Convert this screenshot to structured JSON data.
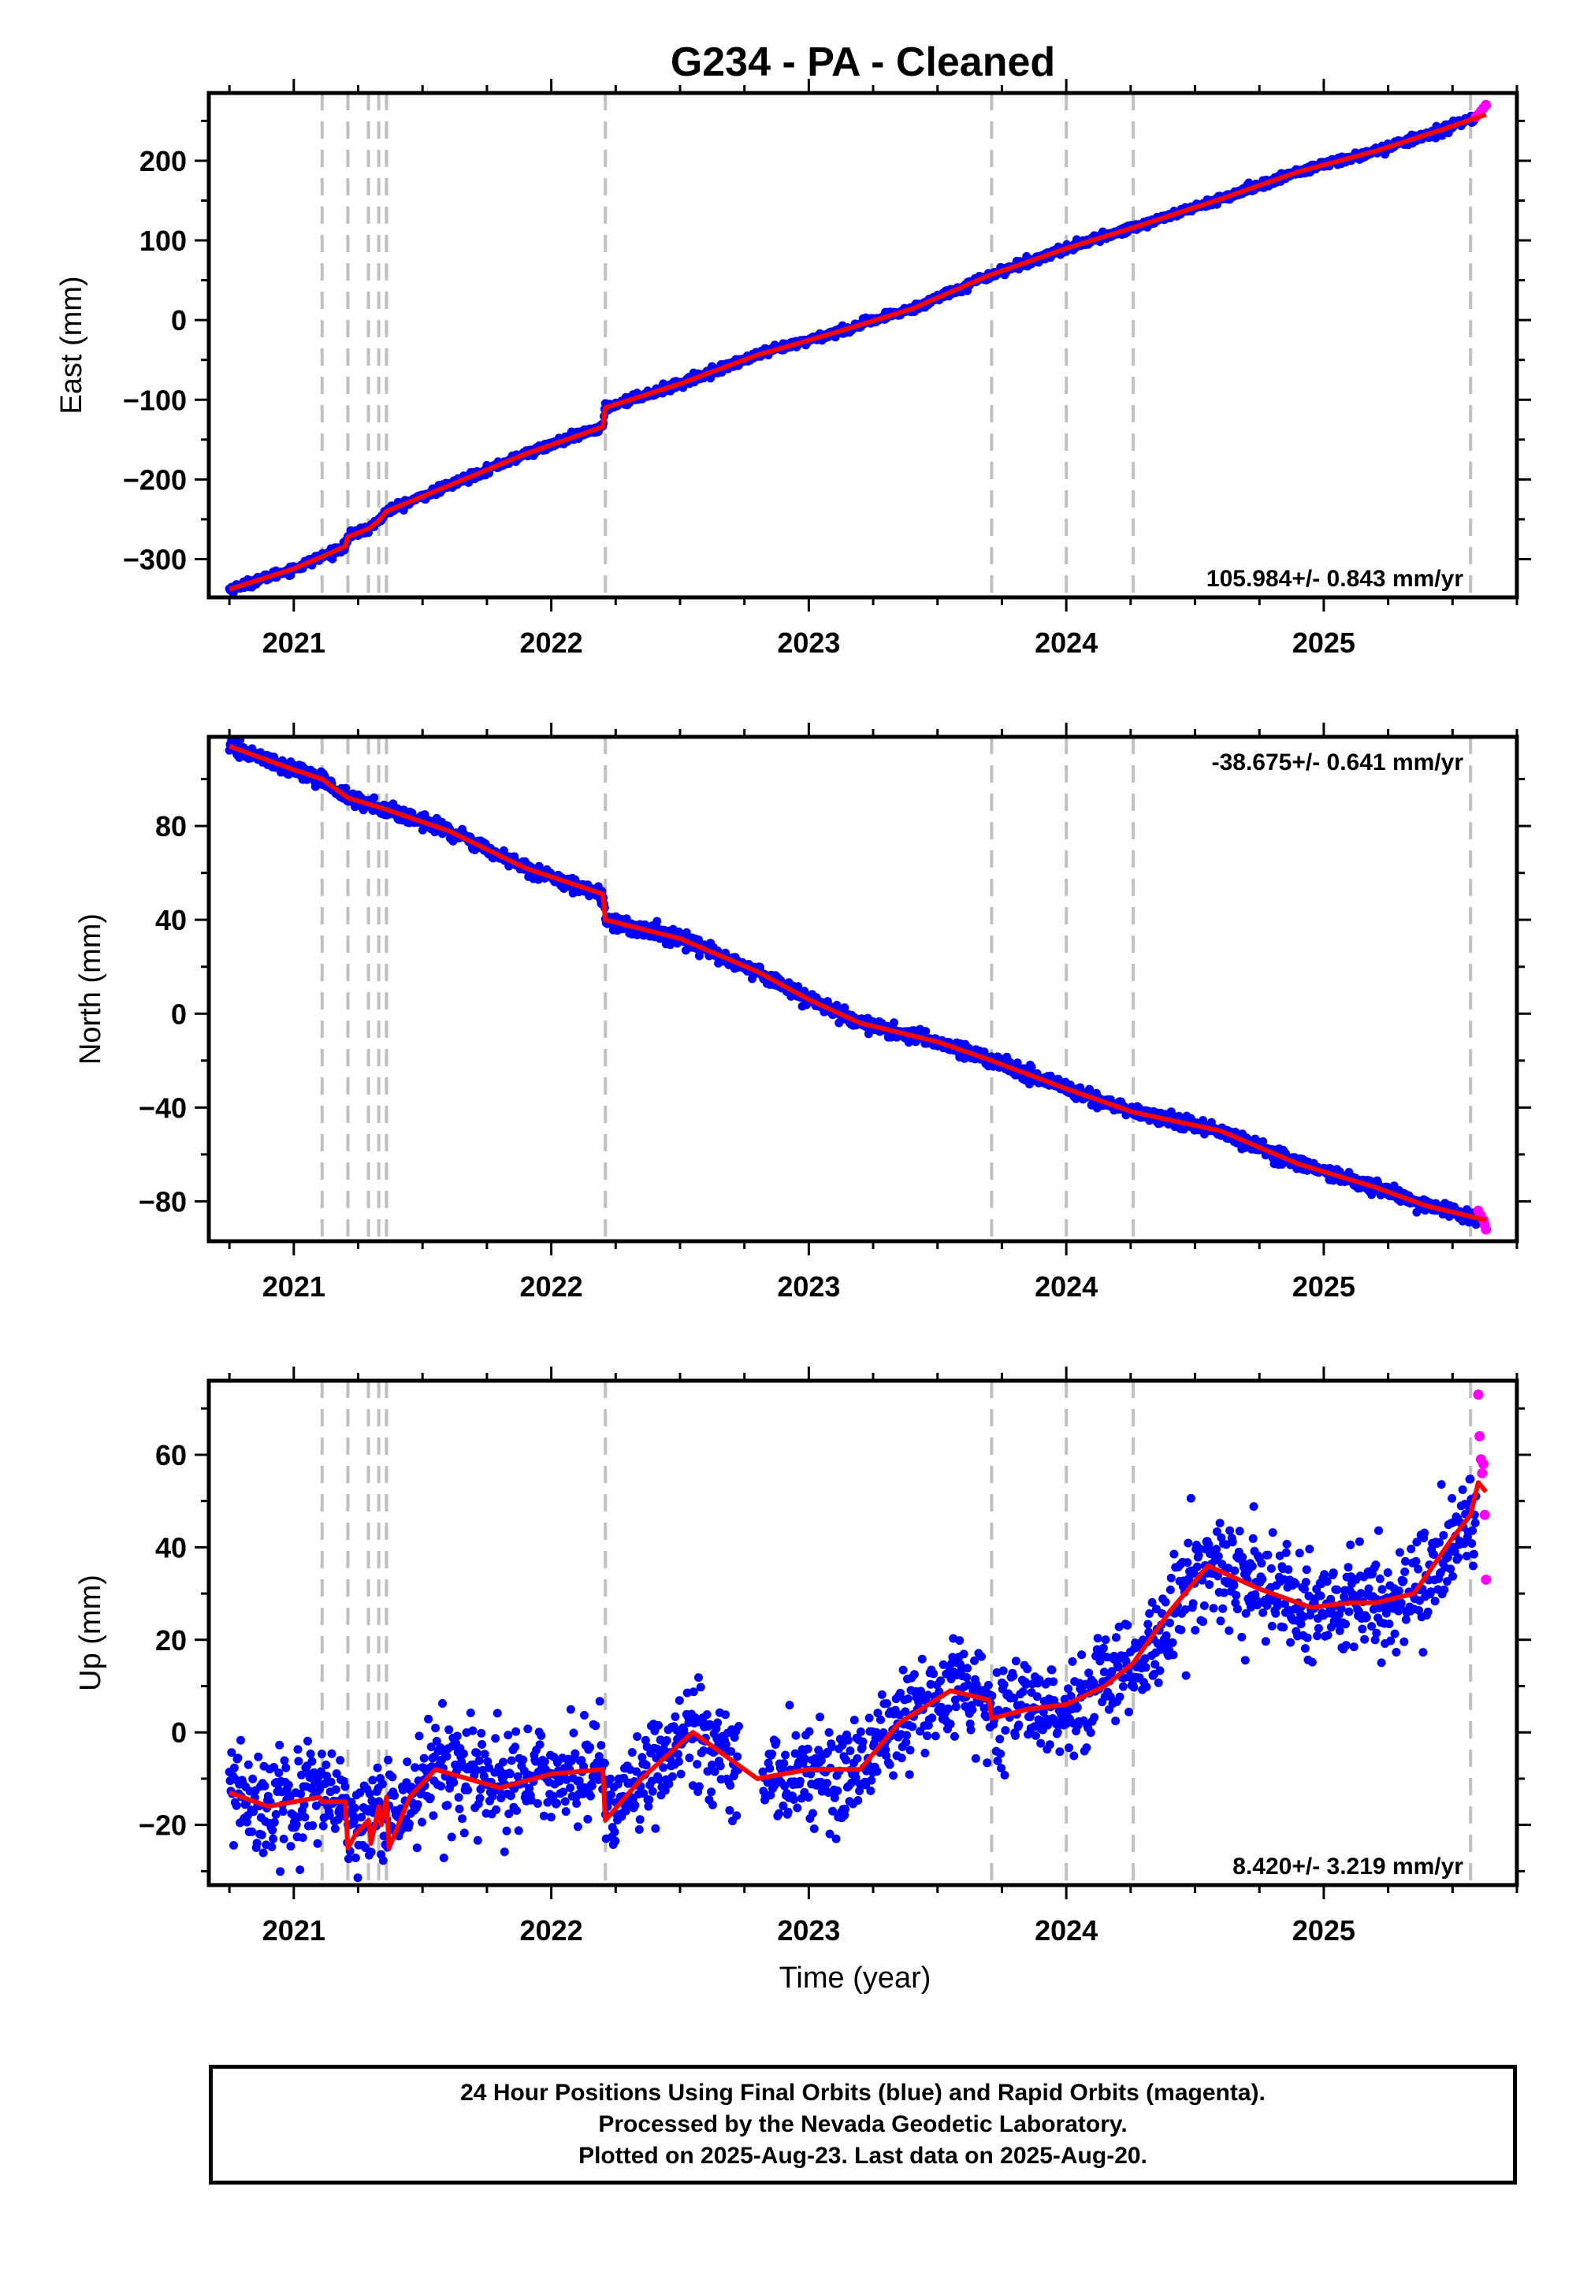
{
  "title": "G234  - PA - Cleaned",
  "colors": {
    "final": "#0000ff",
    "rapid": "#ff00ff",
    "model": "#ff0000",
    "steps": "#c0c0c0"
  },
  "footer": {
    "line1": "24 Hour Positions Using Final Orbits (blue) and Rapid Orbits (magenta).",
    "line2": "Processed by the Nevada Geodetic Laboratory.",
    "line3": "Plotted on 2025-Aug-23. Last data on 2025-Aug-20."
  },
  "chart_data": [
    {
      "type": "scatter",
      "ylabel": "East (mm)",
      "xlabel": "",
      "xlim": [
        2020.67,
        2025.75
      ],
      "ylim": [
        -348,
        285
      ],
      "xticks": [
        2021,
        2022,
        2023,
        2024,
        2025
      ],
      "yticks": [
        -300,
        -200,
        -100,
        0,
        100,
        200
      ],
      "grid": false,
      "rate_text": "105.984+/- 0.843 mm/yr",
      "rate_position": "bottom-right",
      "step_epochs": [
        2021.11,
        2021.21,
        2021.29,
        2021.33,
        2021.36,
        2022.21,
        2023.71,
        2024.0,
        2024.26,
        2025.57
      ],
      "model": {
        "x": [
          2020.75,
          2021.0,
          2021.11,
          2021.2,
          2021.21,
          2021.29,
          2021.33,
          2021.36,
          2021.6,
          2021.9,
          2022.2,
          2022.21,
          2022.5,
          2022.8,
          2023.1,
          2023.4,
          2023.7,
          2024.0,
          2024.26,
          2024.6,
          2024.9,
          2025.2,
          2025.45,
          2025.63
        ],
        "y": [
          -338,
          -312,
          -297,
          -284,
          -272,
          -262,
          -252,
          -240,
          -208,
          -168,
          -134,
          -110,
          -80,
          -44,
          -16,
          14,
          56,
          90,
          116,
          152,
          186,
          212,
          238,
          258
        ]
      },
      "series": [
        {
          "name": "final",
          "scatter_sigma": 2.5,
          "x": [
            2020.75,
            2021.0,
            2021.11,
            2021.2,
            2021.21,
            2021.29,
            2021.33,
            2021.36,
            2021.6,
            2021.9,
            2022.2,
            2022.21,
            2022.5,
            2022.8,
            2023.1,
            2023.4,
            2023.7,
            2024.0,
            2024.26,
            2024.6,
            2024.9,
            2025.2,
            2025.45,
            2025.59
          ],
          "y": [
            -338,
            -312,
            -297,
            -284,
            -272,
            -262,
            -252,
            -240,
            -208,
            -168,
            -134,
            -110,
            -80,
            -44,
            -16,
            14,
            56,
            90,
            116,
            152,
            186,
            212,
            238,
            254
          ]
        },
        {
          "name": "rapid",
          "x": [
            2025.59,
            2025.6,
            2025.61,
            2025.62,
            2025.63
          ],
          "y": [
            255,
            258,
            262,
            266,
            270
          ]
        }
      ]
    },
    {
      "type": "scatter",
      "ylabel": "North (mm)",
      "xlabel": "",
      "xlim": [
        2020.67,
        2025.75
      ],
      "ylim": [
        -97,
        118
      ],
      "xticks": [
        2021,
        2022,
        2023,
        2024,
        2025
      ],
      "yticks": [
        -80,
        -40,
        0,
        40,
        80
      ],
      "grid": false,
      "rate_text": "-38.675+/- 0.641 mm/yr",
      "rate_position": "top-right",
      "step_epochs": [
        2021.11,
        2021.21,
        2021.29,
        2021.33,
        2021.36,
        2022.21,
        2023.71,
        2024.0,
        2024.26,
        2025.57
      ],
      "model": {
        "x": [
          2020.75,
          2021.0,
          2021.11,
          2021.21,
          2021.36,
          2021.6,
          2021.9,
          2022.2,
          2022.21,
          2022.5,
          2022.8,
          2023.0,
          2023.2,
          2023.5,
          2023.71,
          2024.0,
          2024.26,
          2024.6,
          2024.9,
          2025.2,
          2025.4,
          2025.63
        ],
        "y": [
          114,
          104,
          100,
          92,
          87,
          78,
          62,
          51,
          40,
          32,
          18,
          6,
          -4,
          -12,
          -20,
          -32,
          -42,
          -50,
          -64,
          -74,
          -82,
          -88
        ]
      },
      "series": [
        {
          "name": "final",
          "scatter_sigma": 1.5,
          "x": [
            2020.75,
            2021.0,
            2021.11,
            2021.21,
            2021.36,
            2021.6,
            2021.9,
            2022.2,
            2022.21,
            2022.5,
            2022.8,
            2023.0,
            2023.2,
            2023.5,
            2023.71,
            2024.0,
            2024.26,
            2024.6,
            2024.9,
            2025.2,
            2025.4,
            2025.59
          ],
          "y": [
            114,
            104,
            100,
            92,
            87,
            78,
            62,
            51,
            40,
            32,
            18,
            6,
            -4,
            -12,
            -20,
            -32,
            -42,
            -50,
            -64,
            -74,
            -82,
            -87
          ]
        },
        {
          "name": "rapid",
          "x": [
            2025.6,
            2025.61,
            2025.62,
            2025.625,
            2025.63
          ],
          "y": [
            -84,
            -86,
            -88,
            -90,
            -92
          ]
        }
      ]
    },
    {
      "type": "scatter",
      "ylabel": "Up (mm)",
      "xlabel": "Time (year)",
      "xlim": [
        2020.67,
        2025.75
      ],
      "ylim": [
        -33,
        76
      ],
      "xticks": [
        2021,
        2022,
        2023,
        2024,
        2025
      ],
      "yticks": [
        -20,
        0,
        20,
        40,
        60
      ],
      "grid": false,
      "rate_text": "8.420+/- 3.219 mm/yr",
      "rate_position": "bottom-right",
      "step_epochs": [
        2021.11,
        2021.21,
        2021.29,
        2021.33,
        2021.36,
        2022.21,
        2023.71,
        2024.0,
        2024.26,
        2025.57
      ],
      "model": {
        "x": [
          2020.75,
          2020.9,
          2021.1,
          2021.11,
          2021.2,
          2021.21,
          2021.24,
          2021.29,
          2021.3,
          2021.33,
          2021.34,
          2021.36,
          2021.37,
          2021.45,
          2021.55,
          2021.8,
          2022.0,
          2022.2,
          2022.21,
          2022.35,
          2022.55,
          2022.8,
          2023.0,
          2023.2,
          2023.35,
          2023.55,
          2023.7,
          2023.71,
          2023.85,
          2024.0,
          2024.15,
          2024.26,
          2024.4,
          2024.55,
          2024.75,
          2024.95,
          2025.1,
          2025.2,
          2025.35,
          2025.5,
          2025.57,
          2025.6,
          2025.63
        ],
        "y": [
          -13,
          -16,
          -14,
          -15,
          -15,
          -25,
          -22,
          -19,
          -24,
          -16,
          -20,
          -14,
          -25,
          -14,
          -8,
          -12,
          -9,
          -8,
          -19,
          -10,
          0,
          -10,
          -8,
          -8,
          2,
          9,
          7,
          3,
          5,
          6,
          10,
          15,
          26,
          36,
          31,
          27,
          28,
          28,
          30,
          42,
          47,
          54,
          52
        ]
      },
      "series": [
        {
          "name": "final",
          "scatter_sigma": 5.5,
          "x": [
            2020.75,
            2020.9,
            2021.1,
            2021.11,
            2021.2,
            2021.21,
            2021.29,
            2021.33,
            2021.36,
            2021.45,
            2021.55,
            2021.8,
            2022.0,
            2022.2,
            2022.21,
            2022.35,
            2022.55,
            2022.8,
            2023.0,
            2023.2,
            2023.35,
            2023.55,
            2023.71,
            2023.85,
            2024.0,
            2024.15,
            2024.26,
            2024.4,
            2024.55,
            2024.75,
            2024.95,
            2025.1,
            2025.2,
            2025.35,
            2025.5,
            2025.59
          ],
          "y": [
            -13,
            -16,
            -14,
            -15,
            -15,
            -22,
            -19,
            -17,
            -20,
            -14,
            -8,
            -12,
            -9,
            -8,
            -17,
            -10,
            0,
            -10,
            -8,
            -8,
            2,
            9,
            4,
            5,
            6,
            10,
            15,
            26,
            36,
            31,
            27,
            28,
            28,
            30,
            42,
            48
          ]
        },
        {
          "name": "rapid",
          "x": [
            2025.6,
            2025.605,
            2025.61,
            2025.615,
            2025.62,
            2025.625,
            2025.63
          ],
          "y": [
            73,
            64,
            59,
            56,
            58,
            47,
            33
          ]
        }
      ]
    }
  ]
}
